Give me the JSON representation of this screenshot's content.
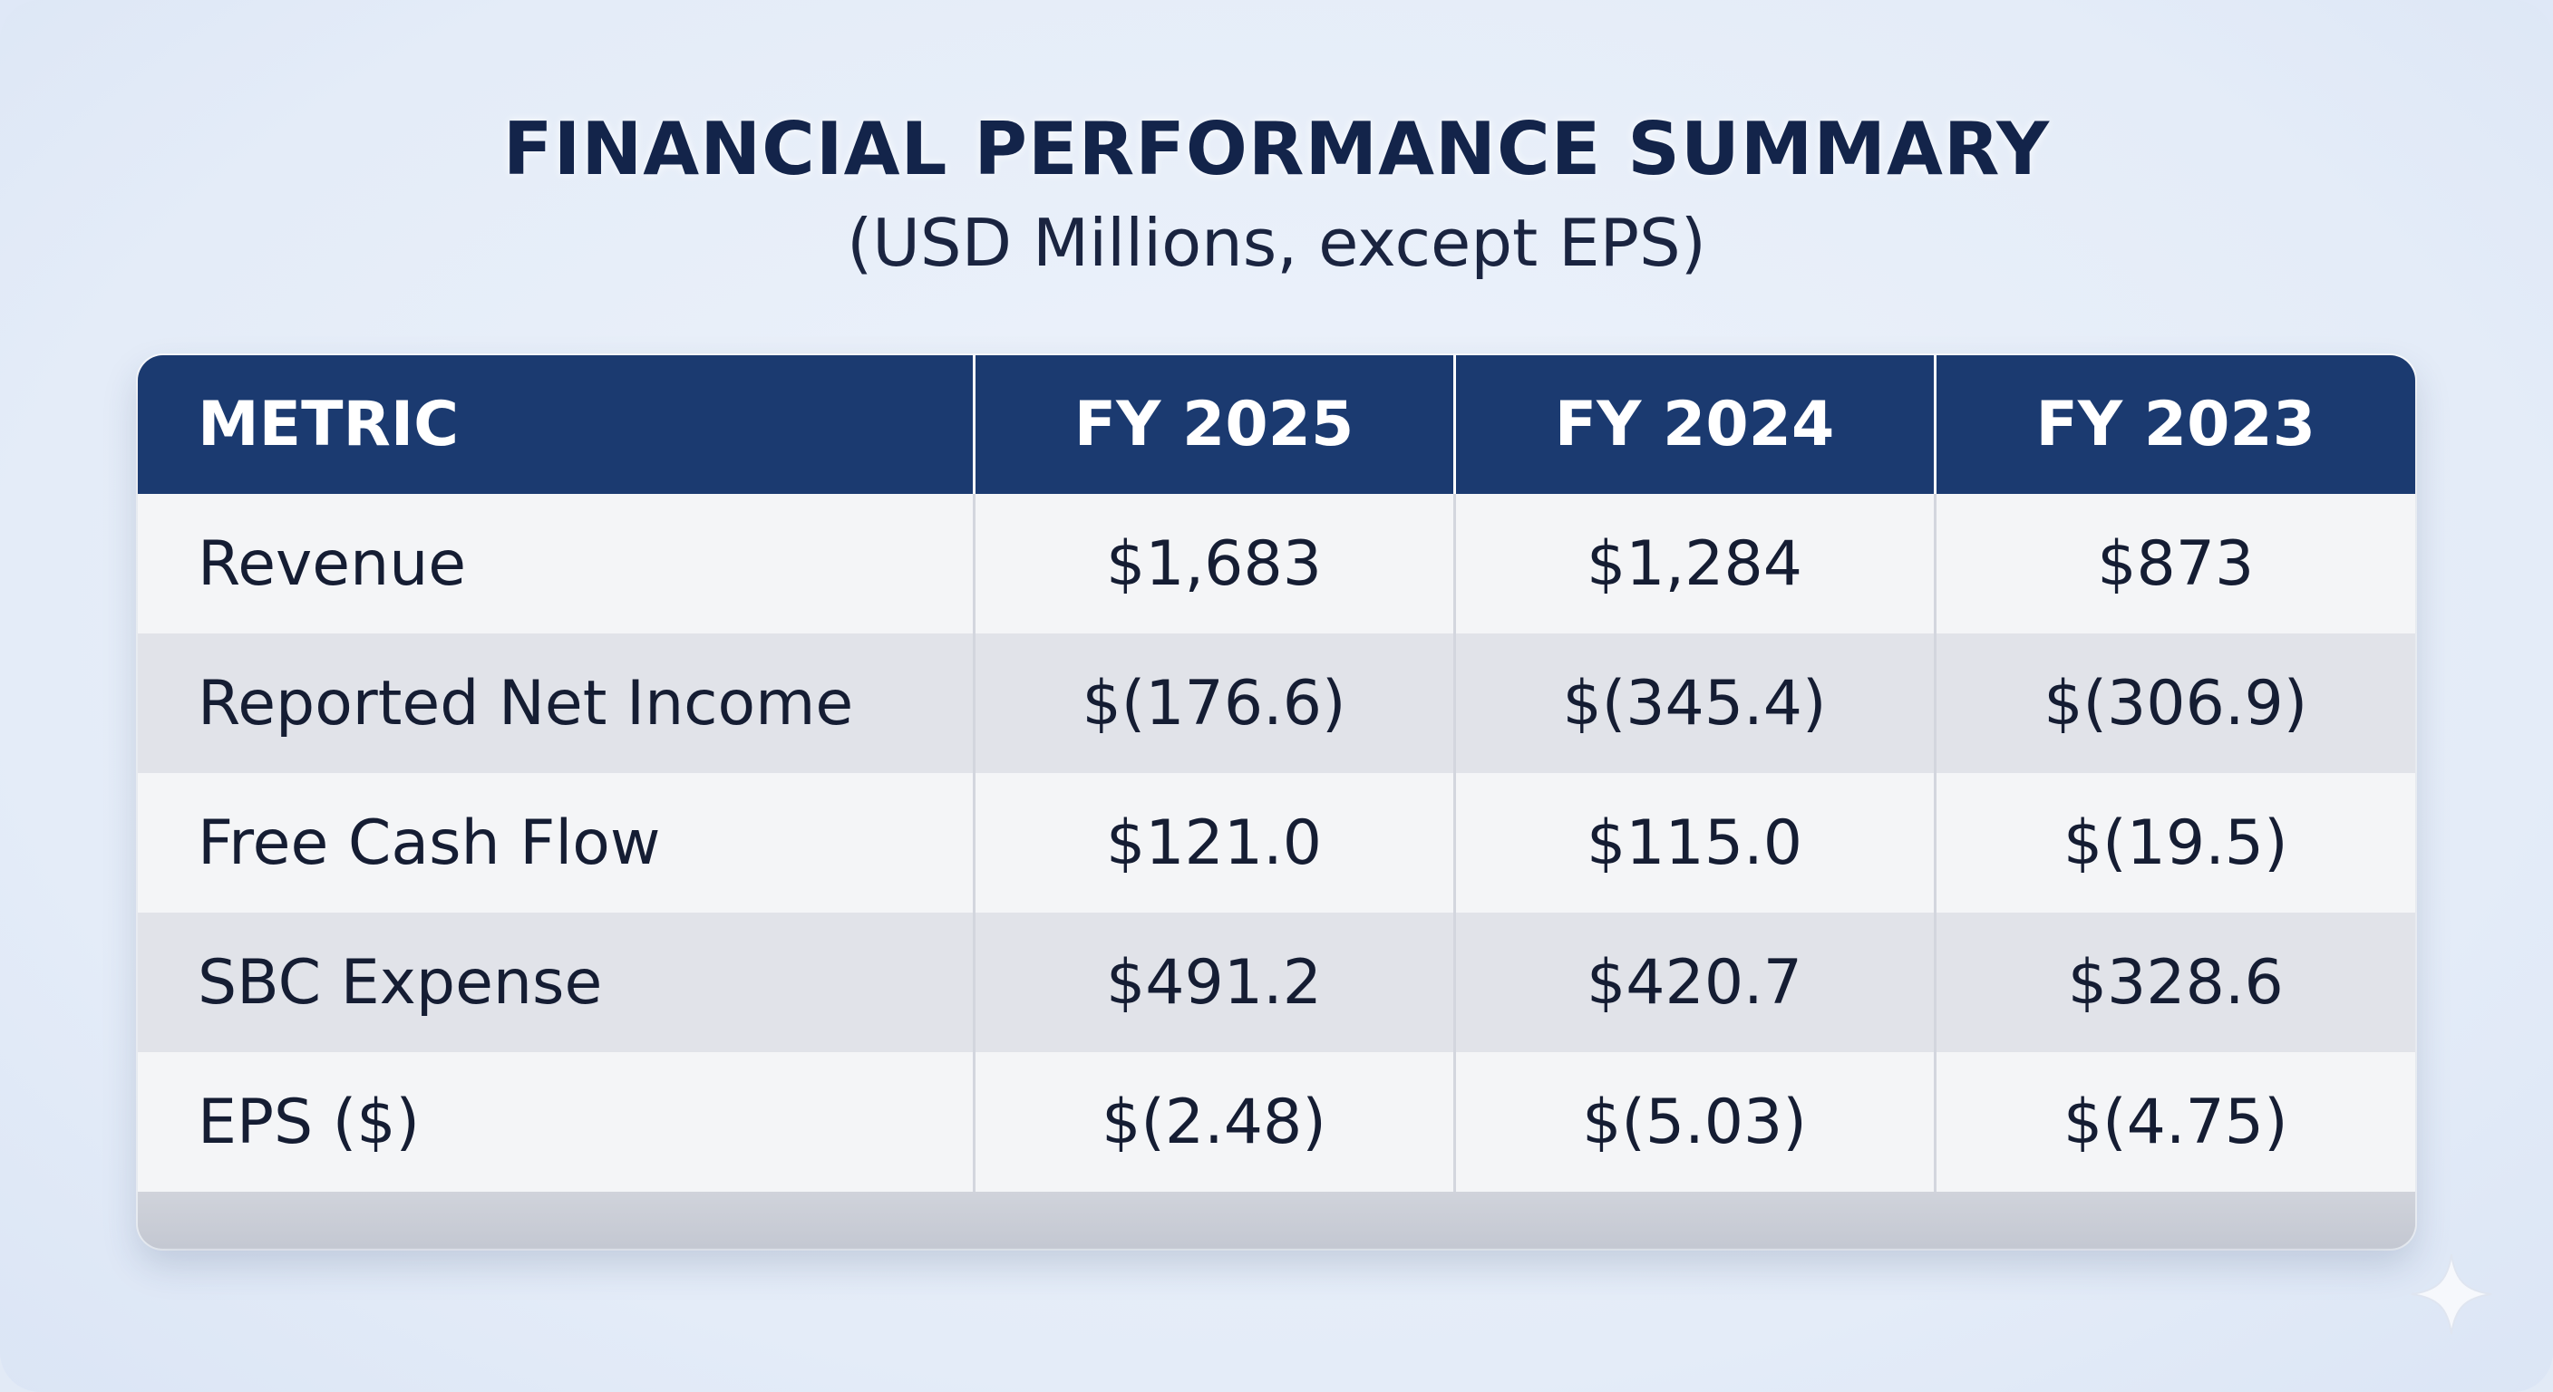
{
  "chart_data": {
    "type": "table",
    "title": "FINANCIAL PERFORMANCE SUMMARY",
    "subtitle": "(USD Millions, except EPS)",
    "columns": [
      "METRIC",
      "FY 2025",
      "FY 2024",
      "FY 2023"
    ],
    "rows": [
      {
        "metric": "Revenue",
        "values": [
          "$1,683",
          "$1,284",
          "$873"
        ]
      },
      {
        "metric": "Reported Net Income",
        "values": [
          "$(176.6)",
          "$(345.4)",
          "$(306.9)"
        ]
      },
      {
        "metric": "Free Cash Flow",
        "values": [
          "$121.0",
          "$115.0",
          "$(19.5)"
        ]
      },
      {
        "metric": "SBC Expense",
        "values": [
          "$491.2",
          "$420.7",
          "$328.6"
        ]
      },
      {
        "metric": "EPS ($)",
        "values": [
          "$(2.48)",
          "$(5.03)",
          "$(4.75)"
        ]
      }
    ]
  },
  "colors": {
    "header_bg": "#1b3a70",
    "title_text": "#13244a",
    "row_light": "#f4f5f7",
    "row_dark": "#e1e3e9"
  },
  "icons": {
    "corner": "sparkle-icon"
  }
}
